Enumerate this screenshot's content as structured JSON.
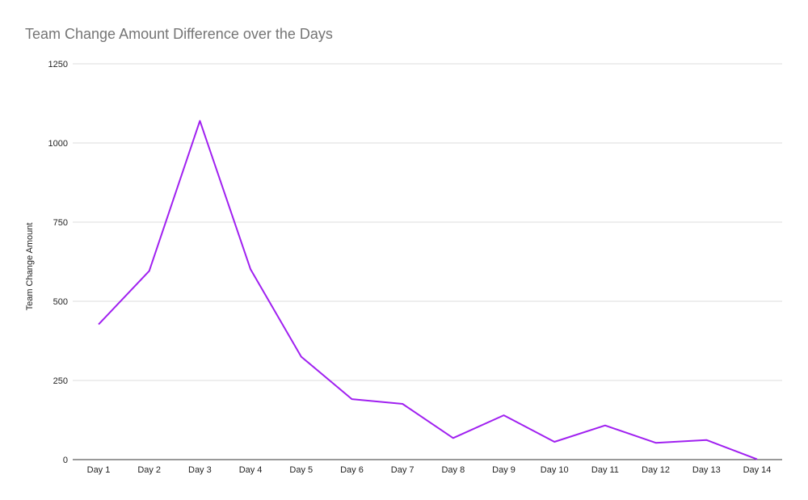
{
  "chart_data": {
    "type": "line",
    "title": "Team Change Amount Difference over the Days",
    "xlabel": "",
    "ylabel": "Team Change Amount",
    "categories": [
      "Day 1",
      "Day 2",
      "Day 3",
      "Day 4",
      "Day 5",
      "Day 6",
      "Day 7",
      "Day 8",
      "Day 9",
      "Day 10",
      "Day 11",
      "Day 12",
      "Day 13",
      "Day 14"
    ],
    "series": [
      {
        "name": "Team Change Amount",
        "color": "#a020f0",
        "values": [
          427,
          596,
          1070,
          601,
          325,
          191,
          176,
          68,
          140,
          56,
          108,
          53,
          62,
          1
        ]
      }
    ],
    "ylim": [
      0,
      1250
    ],
    "yticks": [
      0,
      250,
      500,
      750,
      1000,
      1250
    ],
    "ytick_labels": [
      "0",
      "250",
      "500",
      "750",
      "1000",
      "1250"
    ],
    "grid": true,
    "legend": "none"
  },
  "colors": {
    "line": "#a020f0",
    "grid": "#dcdcdc",
    "axis": "#333333",
    "title": "#757575",
    "text": "#222222"
  }
}
